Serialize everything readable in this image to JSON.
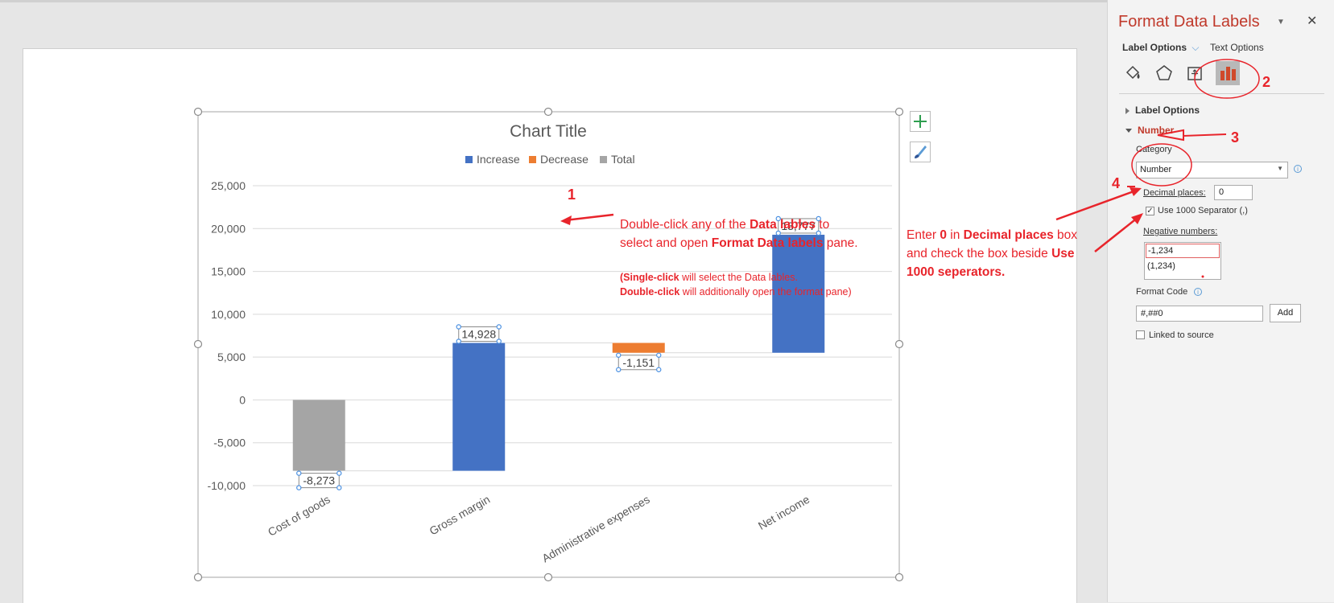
{
  "chart_data": {
    "type": "bar",
    "title": "Chart Title",
    "legend": [
      "Increase",
      "Decrease",
      "Total"
    ],
    "legend_position": "top",
    "categories": [
      "Cost of goods",
      "Gross margin",
      "Administrative expenses",
      "Net income"
    ],
    "values": [
      -8273,
      14928,
      -1151,
      13777
    ],
    "bars": [
      {
        "category": "Cost of goods",
        "kind": "Total",
        "start": 0,
        "end": -8273,
        "label": "-8,273"
      },
      {
        "category": "Gross margin",
        "kind": "Increase",
        "start": -8273,
        "end": 6655,
        "label": "14,928"
      },
      {
        "category": "Administrative expenses",
        "kind": "Decrease",
        "start": 6655,
        "end": 5504,
        "label": "-1,151"
      },
      {
        "category": "Net income",
        "kind": "Increase",
        "start": 5504,
        "end": 19281,
        "label": "13,777"
      }
    ],
    "ylim": [
      -10000,
      25000
    ],
    "yticks": [
      25000,
      20000,
      15000,
      10000,
      5000,
      0,
      -5000,
      -10000
    ],
    "ytick_labels": [
      "25,000",
      "20,000",
      "15,000",
      "10,000",
      "5,000",
      "0",
      "-5,000",
      "-10,000"
    ],
    "grid": true,
    "colors": {
      "Increase": "#4472c4",
      "Decrease": "#ed7d31",
      "Total": "#a5a5a5"
    }
  },
  "annotations": {
    "num1": "1",
    "num2": "2",
    "num3": "3",
    "num4": "4",
    "note1_line1_a": "Double-click any of the ",
    "note1_line1_b": "Data lables",
    "note1_line1_c": " to",
    "note1_line2_a": "select and open ",
    "note1_line2_b": "Format Data labels",
    "note1_line2_c": " pane.",
    "note2_line1_a": "(Single-click",
    "note2_line1_b": " will select the Data lables.",
    "note2_line2_a": "Double-click",
    "note2_line2_b": " will additionally open the format pane)",
    "note3_line1_a": "Enter ",
    "note3_line1_b": "0",
    "note3_line1_c": " in ",
    "note3_line1_d": "Decimal places",
    "note3_line1_e": " box",
    "note3_line2_a": "and check the box beside ",
    "note3_line2_b": "Use",
    "note3_line3": "1000 seperators.",
    "color": "#e8242b"
  },
  "pane": {
    "title": "Format Data Labels",
    "tab_label_options": "Label Options",
    "tab_text_options": "Text Options",
    "icons": [
      "fill-line-icon",
      "effects-icon",
      "size-properties-icon",
      "label-options-icon"
    ],
    "section_label_options": "Label Options",
    "section_number": "Number",
    "category_label": "Category",
    "category_value": "Number",
    "decimal_label": "Decimal places:",
    "decimal_value": "0",
    "separator_label": "Use 1000 Separator (,)",
    "separator_checked": true,
    "negative_label": "Negative numbers:",
    "negative_options": [
      "-1,234",
      "(1,234)"
    ],
    "format_code_label": "Format Code",
    "format_code_value": "#,##0",
    "add_label": "Add",
    "linked_label": "Linked to source",
    "linked_checked": false,
    "accent_color": "#c0392b"
  }
}
